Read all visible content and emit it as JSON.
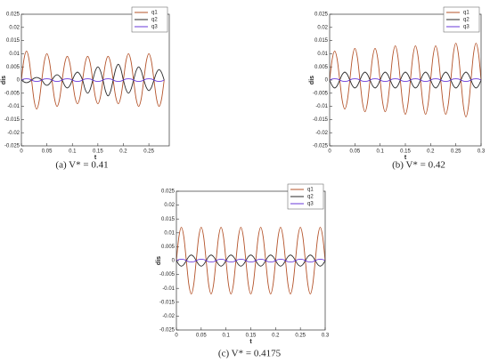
{
  "chart_data": [
    {
      "type": "line",
      "caption": "(a)  V* = 0.41",
      "xlabel": "t",
      "ylabel": "dis",
      "legend": "upper right",
      "xlim": [
        0,
        0.29
      ],
      "ylim": [
        -0.025,
        0.025
      ],
      "xticks": [
        0,
        0.05,
        0.1,
        0.15,
        0.2,
        0.25
      ],
      "yticks": [
        -0.025,
        -0.02,
        -0.015,
        -0.01,
        -0.005,
        0,
        0.005,
        0.01,
        0.015,
        0.02,
        0.025
      ],
      "x": [
        0,
        0.005,
        0.01,
        0.015,
        0.02,
        0.025,
        0.03,
        0.035,
        0.04,
        0.045,
        0.05,
        0.055,
        0.06,
        0.065,
        0.07,
        0.075,
        0.08,
        0.085,
        0.09,
        0.095,
        0.1,
        0.105,
        0.11,
        0.115,
        0.12,
        0.125,
        0.13,
        0.135,
        0.14,
        0.145,
        0.15,
        0.155,
        0.16,
        0.165,
        0.17,
        0.175,
        0.18,
        0.185,
        0.19,
        0.195,
        0.2,
        0.205,
        0.21,
        0.215,
        0.22,
        0.225,
        0.23,
        0.235,
        0.24,
        0.245,
        0.25,
        0.255,
        0.26,
        0.265,
        0.27,
        0.275,
        0.28
      ],
      "series": [
        {
          "name": "q1",
          "color": "#b4532a",
          "values": [
            0,
            0.0078,
            0.011,
            0.0078,
            0,
            -0.0078,
            -0.011,
            -0.0078,
            0,
            0.0071,
            0.01,
            0.0071,
            0,
            -0.0071,
            -0.01,
            -0.0071,
            0,
            0.0064,
            0.009,
            0.0064,
            0,
            -0.0064,
            -0.009,
            -0.0064,
            0,
            0.0064,
            0.009,
            0.0064,
            0,
            -0.0064,
            -0.009,
            -0.0064,
            0,
            0.0064,
            0.009,
            0.0064,
            0,
            -0.0064,
            -0.009,
            -0.0064,
            0,
            0.0071,
            0.01,
            0.0071,
            0,
            -0.0071,
            -0.01,
            -0.0071,
            0,
            0.0071,
            0.01,
            0.0071,
            0,
            -0.0071,
            -0.01,
            -0.0071,
            0
          ]
        },
        {
          "name": "q2",
          "color": "#2a2a2a",
          "values": [
            0,
            -0.0007,
            -0.001,
            -0.0007,
            0,
            0.0007,
            0.001,
            0.0007,
            0,
            -0.0014,
            -0.002,
            -0.0014,
            0,
            0.0014,
            0.002,
            0.0014,
            0,
            -0.0021,
            -0.003,
            -0.0021,
            0,
            0.0021,
            0.003,
            0.0021,
            0,
            -0.0035,
            -0.005,
            -0.0035,
            0,
            0.0035,
            0.005,
            0.0035,
            0,
            -0.0042,
            -0.006,
            -0.0042,
            0,
            0.0042,
            0.006,
            0.0042,
            0,
            -0.0035,
            -0.005,
            -0.0035,
            0,
            0.0035,
            0.005,
            0.0035,
            0,
            -0.0028,
            -0.004,
            -0.0028,
            0,
            0.0028,
            0.004,
            0.0028,
            0
          ]
        },
        {
          "name": "q3",
          "color": "#6a3ad8",
          "values": [
            0,
            0.0004,
            0.0005,
            0.0004,
            0,
            -0.0004,
            -0.0005,
            -0.0004,
            0,
            0.0004,
            0.0005,
            0.0004,
            0,
            -0.0004,
            -0.0005,
            -0.0004,
            0,
            0.0004,
            0.0005,
            0.0004,
            0,
            -0.0004,
            -0.0005,
            -0.0004,
            0,
            0.0004,
            0.0005,
            0.0004,
            0,
            -0.0004,
            -0.0005,
            -0.0004,
            0,
            0.0004,
            0.0005,
            0.0004,
            0,
            -0.0004,
            -0.0005,
            -0.0004,
            0,
            0.0004,
            0.0005,
            0.0004,
            0,
            -0.0004,
            -0.0005,
            -0.0004,
            0,
            0.0004,
            0.0005,
            0.0004,
            0,
            -0.0004,
            -0.0005,
            -0.0004,
            0
          ]
        }
      ]
    },
    {
      "type": "line",
      "caption": "(b)  V* = 0.42",
      "xlabel": "t",
      "ylabel": "dis",
      "legend": "upper right",
      "xlim": [
        0,
        0.3
      ],
      "ylim": [
        -0.025,
        0.025
      ],
      "xticks": [
        0,
        0.05,
        0.1,
        0.15,
        0.2,
        0.25,
        0.3
      ],
      "yticks": [
        -0.025,
        -0.02,
        -0.015,
        -0.01,
        -0.005,
        0,
        0.005,
        0.01,
        0.015,
        0.02,
        0.025
      ],
      "x": [
        0,
        0.005,
        0.01,
        0.015,
        0.02,
        0.025,
        0.03,
        0.035,
        0.04,
        0.045,
        0.05,
        0.055,
        0.06,
        0.065,
        0.07,
        0.075,
        0.08,
        0.085,
        0.09,
        0.095,
        0.1,
        0.105,
        0.11,
        0.115,
        0.12,
        0.125,
        0.13,
        0.135,
        0.14,
        0.145,
        0.15,
        0.155,
        0.16,
        0.165,
        0.17,
        0.175,
        0.18,
        0.185,
        0.19,
        0.195,
        0.2,
        0.205,
        0.21,
        0.215,
        0.22,
        0.225,
        0.23,
        0.235,
        0.24,
        0.245,
        0.25,
        0.255,
        0.26,
        0.265,
        0.27,
        0.275,
        0.28,
        0.285,
        0.29,
        0.295,
        0.3
      ],
      "series": [
        {
          "name": "q1",
          "color": "#b4532a",
          "values": [
            0,
            0.0078,
            0.011,
            0.0078,
            0,
            -0.0078,
            -0.011,
            -0.0078,
            0,
            0.0085,
            0.012,
            0.0085,
            0,
            -0.0085,
            -0.012,
            -0.0085,
            0,
            0.0085,
            0.012,
            0.0085,
            0,
            -0.0085,
            -0.012,
            -0.0085,
            0,
            0.0092,
            0.013,
            0.0092,
            0,
            -0.0092,
            -0.013,
            -0.0092,
            0,
            0.0092,
            0.013,
            0.0092,
            0,
            -0.0092,
            -0.013,
            -0.0092,
            0,
            0.0092,
            0.013,
            0.0092,
            0,
            -0.0092,
            -0.013,
            -0.0092,
            0,
            0.0099,
            0.014,
            0.0099,
            0,
            -0.0099,
            -0.014,
            -0.0099,
            0,
            0.0099,
            0.014,
            0.0099,
            0
          ]
        },
        {
          "name": "q2",
          "color": "#2a2a2a",
          "values": [
            0,
            -0.0021,
            -0.003,
            -0.0021,
            0,
            0.0021,
            0.003,
            0.0021,
            0,
            -0.0021,
            -0.003,
            -0.0021,
            0,
            0.0021,
            0.003,
            0.0021,
            0,
            -0.0021,
            -0.003,
            -0.0021,
            0,
            0.0021,
            0.003,
            0.0021,
            0,
            -0.0021,
            -0.003,
            -0.0021,
            0,
            0.0021,
            0.003,
            0.0021,
            0,
            -0.0021,
            -0.003,
            -0.0021,
            0,
            0.0021,
            0.003,
            0.0021,
            0,
            -0.0021,
            -0.003,
            -0.0021,
            0,
            0.0021,
            0.003,
            0.0021,
            0,
            -0.0021,
            -0.003,
            -0.0021,
            0,
            0.0021,
            0.003,
            0.0021,
            0,
            -0.0021,
            -0.003,
            -0.0021,
            0
          ]
        },
        {
          "name": "q3",
          "color": "#6a3ad8",
          "values": [
            0,
            0.0004,
            0.0005,
            0.0004,
            0,
            -0.0004,
            -0.0005,
            -0.0004,
            0,
            0.0004,
            0.0005,
            0.0004,
            0,
            -0.0004,
            -0.0005,
            -0.0004,
            0,
            0.0004,
            0.0005,
            0.0004,
            0,
            -0.0004,
            -0.0005,
            -0.0004,
            0,
            0.0004,
            0.0005,
            0.0004,
            0,
            -0.0004,
            -0.0005,
            -0.0004,
            0,
            0.0004,
            0.0005,
            0.0004,
            0,
            -0.0004,
            -0.0005,
            -0.0004,
            0,
            0.0004,
            0.0005,
            0.0004,
            0,
            -0.0004,
            -0.0005,
            -0.0004,
            0,
            0.0004,
            0.0005,
            0.0004,
            0,
            -0.0004,
            -0.0005,
            -0.0004,
            0,
            0.0004,
            0.0005,
            0.0004,
            0
          ]
        }
      ]
    },
    {
      "type": "line",
      "caption": "(c)  V* = 0.4175",
      "xlabel": "t",
      "ylabel": "dis",
      "legend": "upper right",
      "xlim": [
        0,
        0.3
      ],
      "ylim": [
        -0.025,
        0.025
      ],
      "xticks": [
        0,
        0.05,
        0.1,
        0.15,
        0.2,
        0.25,
        0.3
      ],
      "yticks": [
        -0.025,
        -0.02,
        -0.015,
        -0.01,
        -0.005,
        0,
        0.005,
        0.01,
        0.015,
        0.02,
        0.025
      ],
      "x": [
        0,
        0.005,
        0.01,
        0.015,
        0.02,
        0.025,
        0.03,
        0.035,
        0.04,
        0.045,
        0.05,
        0.055,
        0.06,
        0.065,
        0.07,
        0.075,
        0.08,
        0.085,
        0.09,
        0.095,
        0.1,
        0.105,
        0.11,
        0.115,
        0.12,
        0.125,
        0.13,
        0.135,
        0.14,
        0.145,
        0.15,
        0.155,
        0.16,
        0.165,
        0.17,
        0.175,
        0.18,
        0.185,
        0.19,
        0.195,
        0.2,
        0.205,
        0.21,
        0.215,
        0.22,
        0.225,
        0.23,
        0.235,
        0.24,
        0.245,
        0.25,
        0.255,
        0.26,
        0.265,
        0.27,
        0.275,
        0.28,
        0.285,
        0.29,
        0.295,
        0.3
      ],
      "series": [
        {
          "name": "q1",
          "color": "#b4532a",
          "values": [
            0,
            0.0085,
            0.012,
            0.0085,
            0,
            -0.0085,
            -0.012,
            -0.0085,
            0,
            0.0085,
            0.012,
            0.0085,
            0,
            -0.0085,
            -0.012,
            -0.0085,
            0,
            0.0085,
            0.012,
            0.0085,
            0,
            -0.0085,
            -0.012,
            -0.0085,
            0,
            0.0085,
            0.012,
            0.0085,
            0,
            -0.0085,
            -0.012,
            -0.0085,
            0,
            0.0085,
            0.012,
            0.0085,
            0,
            -0.0085,
            -0.012,
            -0.0085,
            0,
            0.0085,
            0.012,
            0.0085,
            0,
            -0.0085,
            -0.012,
            -0.0085,
            0,
            0.0085,
            0.012,
            0.0085,
            0,
            -0.0085,
            -0.012,
            -0.0085,
            0,
            0.0085,
            0.012,
            0.0085,
            0
          ]
        },
        {
          "name": "q2",
          "color": "#2a2a2a",
          "values": [
            0,
            -0.0014,
            -0.002,
            -0.0014,
            0,
            0.0014,
            0.002,
            0.0014,
            0,
            -0.0014,
            -0.002,
            -0.0014,
            0,
            0.0014,
            0.002,
            0.0014,
            0,
            -0.0014,
            -0.002,
            -0.0014,
            0,
            0.0014,
            0.002,
            0.0014,
            0,
            -0.0014,
            -0.002,
            -0.0014,
            0,
            0.0014,
            0.002,
            0.0014,
            0,
            -0.0014,
            -0.002,
            -0.0014,
            0,
            0.0014,
            0.002,
            0.0014,
            0,
            -0.0014,
            -0.002,
            -0.0014,
            0,
            0.0014,
            0.002,
            0.0014,
            0,
            -0.0014,
            -0.002,
            -0.0014,
            0,
            0.0014,
            0.002,
            0.0014,
            0,
            -0.0014,
            -0.002,
            -0.0014,
            0
          ]
        },
        {
          "name": "q3",
          "color": "#6a3ad8",
          "values": [
            0,
            0.0004,
            0.0005,
            0.0004,
            0,
            -0.0004,
            -0.0005,
            -0.0004,
            0,
            0.0004,
            0.0005,
            0.0004,
            0,
            -0.0004,
            -0.0005,
            -0.0004,
            0,
            0.0004,
            0.0005,
            0.0004,
            0,
            -0.0004,
            -0.0005,
            -0.0004,
            0,
            0.0004,
            0.0005,
            0.0004,
            0,
            -0.0004,
            -0.0005,
            -0.0004,
            0,
            0.0004,
            0.0005,
            0.0004,
            0,
            -0.0004,
            -0.0005,
            -0.0004,
            0,
            0.0004,
            0.0005,
            0.0004,
            0,
            -0.0004,
            -0.0005,
            -0.0004,
            0,
            0.0004,
            0.0005,
            0.0004,
            0,
            -0.0004,
            -0.0005,
            -0.0004,
            0,
            0.0004,
            0.0005,
            0.0004,
            0
          ]
        }
      ]
    }
  ]
}
